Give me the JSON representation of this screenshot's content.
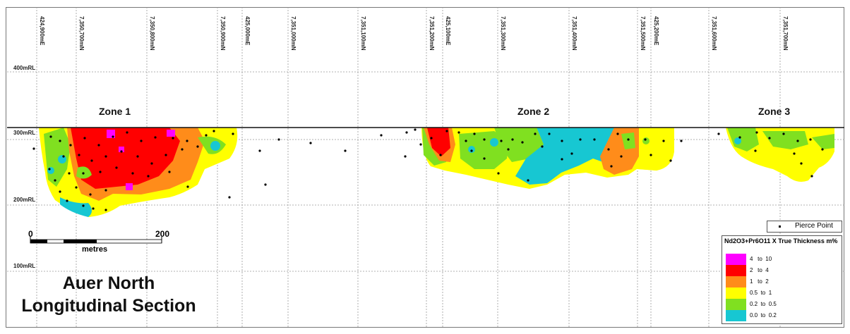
{
  "title": {
    "line1": "Auer North",
    "line2": "Longitudinal Section"
  },
  "grid_labels": [
    "424,900mE",
    "7,350,700mN",
    "7,350,800mN",
    "7,350,900mN",
    "425,000mE",
    "7,351,000mN",
    "7,351,100mN",
    "7,351,200mN",
    "425,100mE",
    "7,351,300mN",
    "7,351,400mN",
    "7,351,500mN",
    "425,200mE",
    "7,351,600mN",
    "7,351,700mN"
  ],
  "elevation_labels": [
    "400mRL",
    "300mRL",
    "200mRL",
    "100mRL"
  ],
  "zones": [
    "Zone 1",
    "Zone 2",
    "Zone 3"
  ],
  "scale_bar": {
    "start": "0",
    "end": "200",
    "unit": "metres"
  },
  "legend": {
    "pierce_point": "Pierce Point",
    "title": "Nd2O3+Pr6O11 X True Thickness m%",
    "classes": [
      {
        "from": "4",
        "to_word": "to",
        "to": "10",
        "color": "#ff00ff"
      },
      {
        "from": "2",
        "to_word": "to",
        "to": "4",
        "color": "#ff0000"
      },
      {
        "from": "1",
        "to_word": "to",
        "to": "2",
        "color": "#ff8c1a"
      },
      {
        "from": "0.5",
        "to_word": "to",
        "to": "1",
        "color": "#ffff00"
      },
      {
        "from": "0.2",
        "to_word": "to",
        "to": "0.5",
        "color": "#80e020"
      },
      {
        "from": "0.0",
        "to_word": "to",
        "to": "0.2",
        "color": "#17c7d2"
      }
    ]
  }
}
